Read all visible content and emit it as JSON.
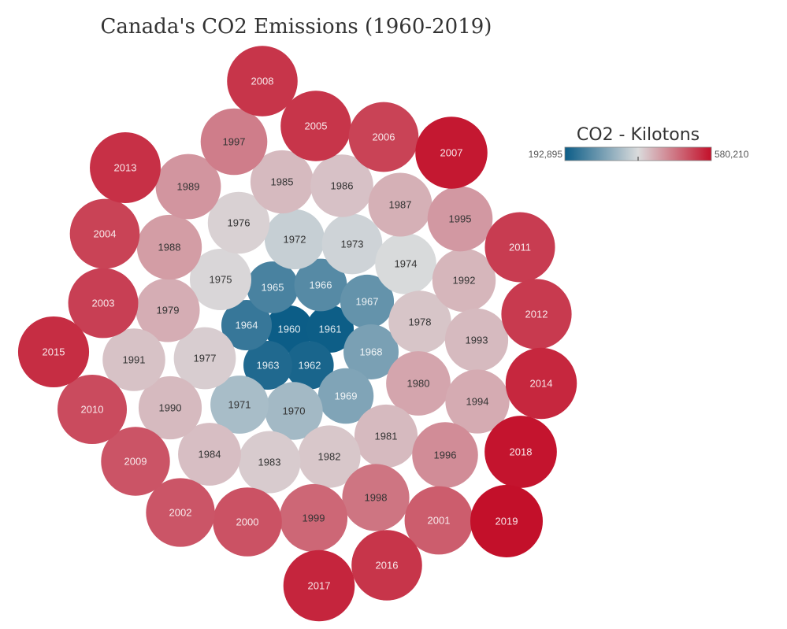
{
  "chart_data": {
    "type": "bubble",
    "title": "Canada's CO2 Emissions (1960-2019)",
    "color_legend": {
      "title": "CO2 - Kilotons",
      "min_label": "192,895",
      "max_label": "580,210",
      "min": 192895,
      "max": 580210,
      "colors": [
        "#0c5d87",
        "#dadbdc",
        "#c3102a"
      ]
    },
    "values": [
      {
        "year": "1960",
        "kt": 192895
      },
      {
        "year": "1961",
        "kt": 194000
      },
      {
        "year": "1962",
        "kt": 205000
      },
      {
        "year": "1963",
        "kt": 212000
      },
      {
        "year": "1964",
        "kt": 233000
      },
      {
        "year": "1965",
        "kt": 250000
      },
      {
        "year": "1966",
        "kt": 262000
      },
      {
        "year": "1967",
        "kt": 276000
      },
      {
        "year": "1968",
        "kt": 296000
      },
      {
        "year": "1969",
        "kt": 302000
      },
      {
        "year": "1970",
        "kt": 335000
      },
      {
        "year": "1971",
        "kt": 340000
      },
      {
        "year": "1972",
        "kt": 368000
      },
      {
        "year": "1973",
        "kt": 375000
      },
      {
        "year": "1974",
        "kt": 385000
      },
      {
        "year": "1975",
        "kt": 391000
      },
      {
        "year": "1976",
        "kt": 396000
      },
      {
        "year": "1977",
        "kt": 400000
      },
      {
        "year": "1978",
        "kt": 408000
      },
      {
        "year": "1979",
        "kt": 430000
      },
      {
        "year": "1980",
        "kt": 438000
      },
      {
        "year": "1981",
        "kt": 418000
      },
      {
        "year": "1982",
        "kt": 406000
      },
      {
        "year": "1983",
        "kt": 402000
      },
      {
        "year": "1984",
        "kt": 414000
      },
      {
        "year": "1985",
        "kt": 418000
      },
      {
        "year": "1986",
        "kt": 411000
      },
      {
        "year": "1987",
        "kt": 428000
      },
      {
        "year": "1988",
        "kt": 446000
      },
      {
        "year": "1989",
        "kt": 453000
      },
      {
        "year": "1990",
        "kt": 418000
      },
      {
        "year": "1991",
        "kt": 410000
      },
      {
        "year": "1992",
        "kt": 422000
      },
      {
        "year": "1993",
        "kt": 418000
      },
      {
        "year": "1994",
        "kt": 432000
      },
      {
        "year": "1995",
        "kt": 450000
      },
      {
        "year": "1996",
        "kt": 462000
      },
      {
        "year": "1997",
        "kt": 476000
      },
      {
        "year": "1998",
        "kt": 484000
      },
      {
        "year": "1999",
        "kt": 497000
      },
      {
        "year": "2000",
        "kt": 517000
      },
      {
        "year": "2001",
        "kt": 507000
      },
      {
        "year": "2002",
        "kt": 514000
      },
      {
        "year": "2003",
        "kt": 535000
      },
      {
        "year": "2004",
        "kt": 532000
      },
      {
        "year": "2005",
        "kt": 545000
      },
      {
        "year": "2006",
        "kt": 532000
      },
      {
        "year": "2007",
        "kt": 573000
      },
      {
        "year": "2008",
        "kt": 545000
      },
      {
        "year": "2009",
        "kt": 515000
      },
      {
        "year": "2010",
        "kt": 524000
      },
      {
        "year": "2011",
        "kt": 538000
      },
      {
        "year": "2012",
        "kt": 540000
      },
      {
        "year": "2013",
        "kt": 550000
      },
      {
        "year": "2014",
        "kt": 558000
      },
      {
        "year": "2015",
        "kt": 553000
      },
      {
        "year": "2016",
        "kt": 545000
      },
      {
        "year": "2017",
        "kt": 560000
      },
      {
        "year": "2018",
        "kt": 576000
      },
      {
        "year": "2019",
        "kt": 580210
      }
    ]
  }
}
